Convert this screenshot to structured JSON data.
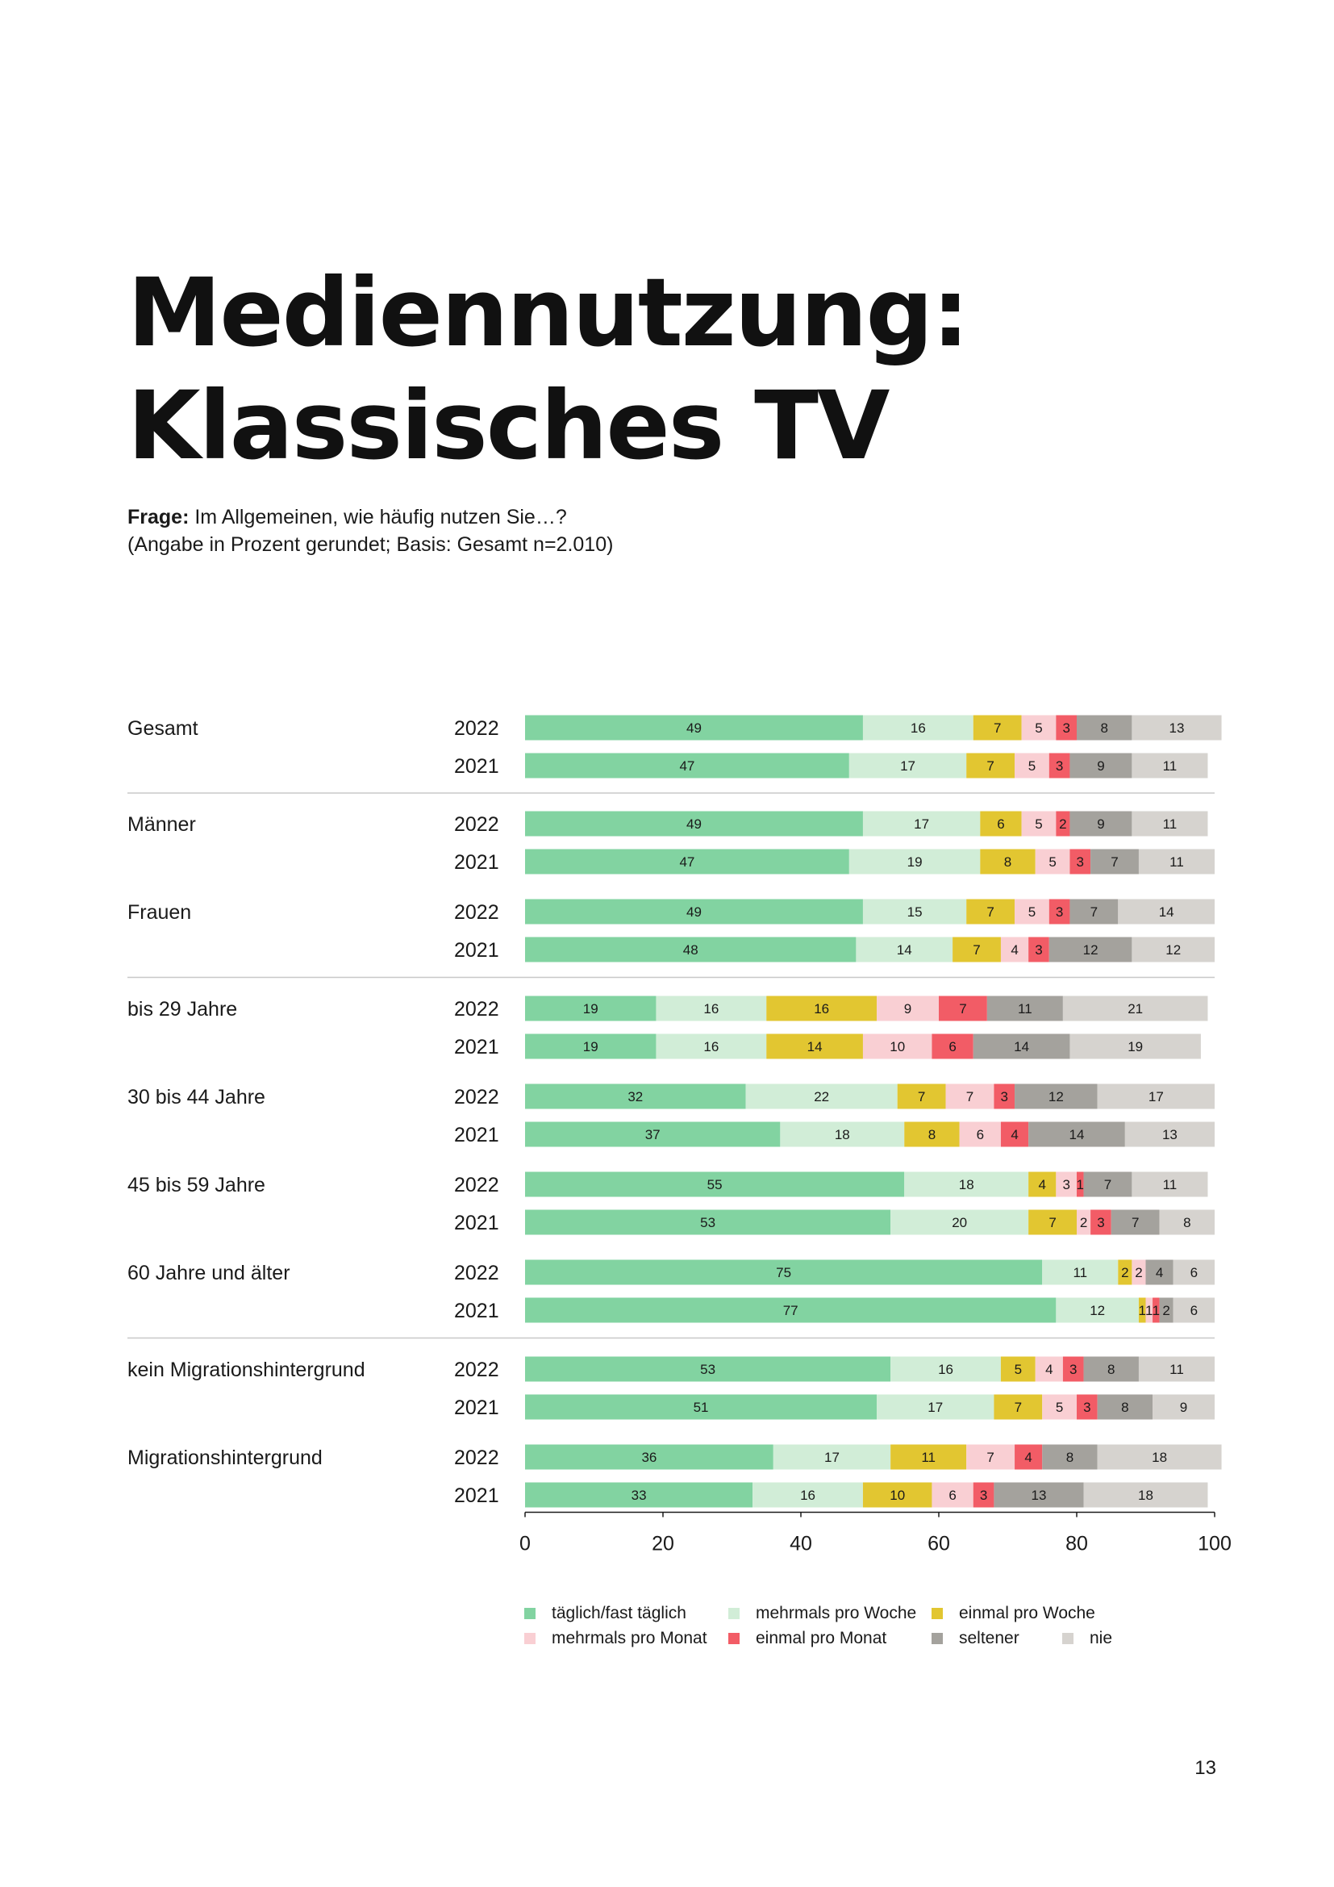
{
  "title_lines": [
    "Mediennutzung:",
    "Klassisches TV"
  ],
  "question": {
    "bold": "Frage:",
    "text": " Im Allgemeinen, wie häufig nutzen Sie…?",
    "note": "(Angabe in Prozent gerundet; Basis: Gesamt n=2.010)"
  },
  "page_number": "13",
  "chart_data": {
    "type": "bar",
    "orientation": "horizontal",
    "stacked": true,
    "xlim": [
      0,
      100
    ],
    "x_ticks": [
      "0",
      "20",
      "40",
      "60",
      "80",
      "100"
    ],
    "categories": [
      "täglich/fast täglich",
      "mehrmals pro Woche",
      "einmal pro Woche",
      "mehrmals pro Monat",
      "einmal pro Monat",
      "seltener",
      "nie"
    ],
    "colors": [
      "#82d3a1",
      "#d1edd7",
      "#e2c631",
      "#f9cfd3",
      "#f25c66",
      "#a4a29d",
      "#d6d3cf"
    ],
    "legend_placement": "bottom",
    "groups": [
      {
        "label": "Gesamt",
        "rows": [
          {
            "year": "2022",
            "values": [
              49,
              16,
              7,
              5,
              3,
              8,
              13
            ]
          },
          {
            "year": "2021",
            "values": [
              47,
              17,
              7,
              5,
              3,
              9,
              11
            ]
          }
        ]
      },
      {
        "label": "Männer",
        "rows": [
          {
            "year": "2022",
            "values": [
              49,
              17,
              6,
              5,
              2,
              9,
              11
            ]
          },
          {
            "year": "2021",
            "values": [
              47,
              19,
              8,
              5,
              3,
              7,
              11
            ]
          }
        ]
      },
      {
        "label": "Frauen",
        "rows": [
          {
            "year": "2022",
            "values": [
              49,
              15,
              7,
              5,
              3,
              7,
              14
            ]
          },
          {
            "year": "2021",
            "values": [
              48,
              14,
              7,
              4,
              3,
              12,
              12
            ]
          }
        ]
      },
      {
        "label": "bis 29 Jahre",
        "rows": [
          {
            "year": "2022",
            "values": [
              19,
              16,
              16,
              9,
              7,
              11,
              21
            ]
          },
          {
            "year": "2021",
            "values": [
              19,
              16,
              14,
              10,
              6,
              14,
              19
            ]
          }
        ]
      },
      {
        "label": "30 bis 44 Jahre",
        "rows": [
          {
            "year": "2022",
            "values": [
              32,
              22,
              7,
              7,
              3,
              12,
              17
            ]
          },
          {
            "year": "2021",
            "values": [
              37,
              18,
              8,
              6,
              4,
              14,
              13
            ]
          }
        ]
      },
      {
        "label": "45 bis 59 Jahre",
        "rows": [
          {
            "year": "2022",
            "values": [
              55,
              18,
              4,
              3,
              1,
              7,
              11
            ]
          },
          {
            "year": "2021",
            "values": [
              53,
              20,
              7,
              2,
              3,
              7,
              8
            ]
          }
        ]
      },
      {
        "label": "60 Jahre und älter",
        "rows": [
          {
            "year": "2022",
            "values": [
              75,
              11,
              2,
              2,
              0,
              4,
              6
            ]
          },
          {
            "year": "2021",
            "values": [
              77,
              12,
              1,
              1,
              1,
              2,
              6
            ]
          }
        ]
      },
      {
        "label": "kein Migrationshintergrund",
        "rows": [
          {
            "year": "2022",
            "values": [
              53,
              16,
              5,
              4,
              3,
              8,
              11
            ]
          },
          {
            "year": "2021",
            "values": [
              51,
              17,
              7,
              5,
              3,
              8,
              9
            ]
          }
        ]
      },
      {
        "label": "Migrationshintergrund",
        "rows": [
          {
            "year": "2022",
            "values": [
              36,
              17,
              11,
              7,
              4,
              8,
              18
            ]
          },
          {
            "year": "2021",
            "values": [
              33,
              16,
              10,
              6,
              3,
              13,
              18
            ]
          }
        ]
      }
    ]
  }
}
